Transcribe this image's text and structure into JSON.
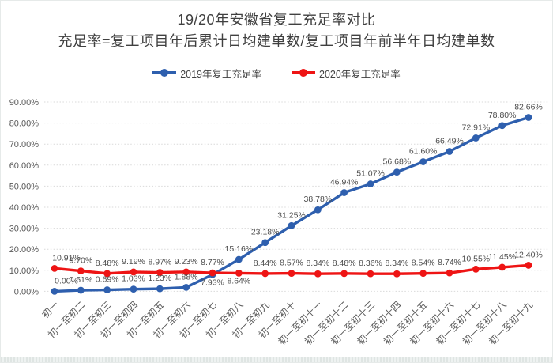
{
  "page": {
    "title_line1": "19/20年安徽省复工充足率对比",
    "title_line2": "充足率=复工项目年后累计日均建单数/复工项目年前半年日均建单数"
  },
  "colors": {
    "series_2019": "#2e5fae",
    "series_2020": "#ee1414",
    "gridline": "#d9d9d9",
    "tick_label": "#595959",
    "data_label": "#4d4d4d",
    "title_text": "#404040",
    "bottom_strip": "#dfe5e3"
  },
  "chart_data": {
    "type": "line",
    "title": "19/20年安徽省复工充足率对比",
    "subtitle": "充足率=复工项目年后累计日均建单数/复工项目年前半年日均建单数",
    "legend_position": "top",
    "grid": "horizontal-dotted",
    "ylim": [
      0,
      90
    ],
    "y_tick_labels": [
      "0.00%",
      "10.00%",
      "20.00%",
      "30.00%",
      "40.00%",
      "50.00%",
      "60.00%",
      "70.00%",
      "80.00%",
      "90.00%"
    ],
    "categories": [
      "初一",
      "初一至初二",
      "初一至初三",
      "初一至初四",
      "初一至初五",
      "初一至初六",
      "初一至初七",
      "初一至初八",
      "初一至初九",
      "初一至初十",
      "初一至初十一",
      "初一至初十二",
      "初一至初十三",
      "初一至初十四",
      "初一至初十五",
      "初一至初十六",
      "初一至初十七",
      "初一至初十八",
      "初一至初十九"
    ],
    "series": [
      {
        "name": "2019年复工充足率",
        "color": "#2e5fae",
        "values": [
          0.0,
          0.51,
          0.69,
          1.03,
          1.23,
          1.88,
          7.93,
          15.16,
          23.18,
          31.25,
          38.78,
          46.94,
          51.07,
          56.68,
          61.6,
          66.49,
          72.91,
          78.8,
          82.66
        ],
        "label_below_indices": [
          6
        ]
      },
      {
        "name": "2020年复工充足率",
        "color": "#ee1414",
        "values": [
          10.91,
          9.7,
          8.48,
          9.19,
          8.97,
          9.23,
          8.77,
          8.64,
          8.44,
          8.57,
          8.34,
          8.48,
          8.36,
          8.34,
          8.54,
          8.74,
          10.55,
          11.45,
          12.4
        ],
        "label_below_indices": [
          7
        ]
      }
    ]
  }
}
